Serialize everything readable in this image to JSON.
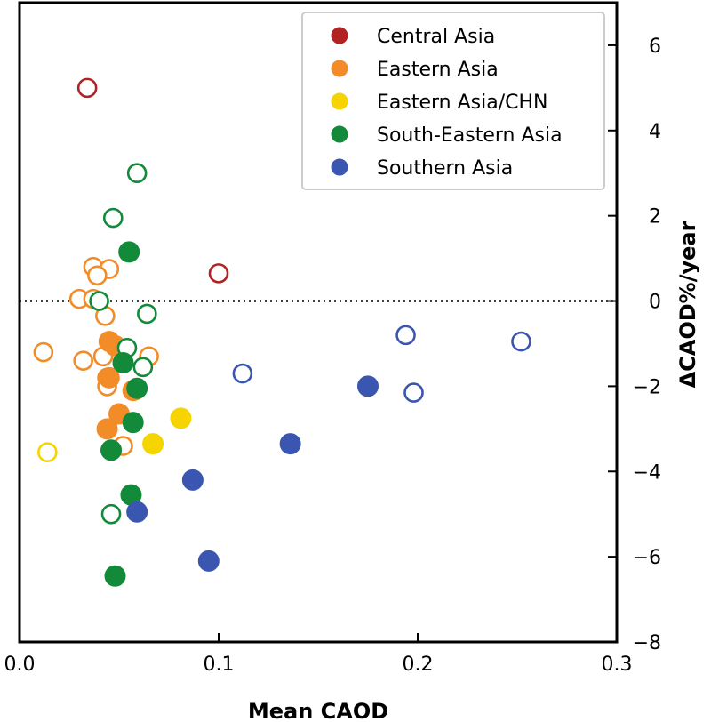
{
  "chart_data": {
    "type": "scatter",
    "xlabel": "Mean CAOD",
    "ylabel": "ΔCAOD%/year",
    "xlim": [
      0.0,
      0.3
    ],
    "ylim": [
      -8,
      7
    ],
    "x_ticks": [
      "0.0",
      "0.1",
      "0.2",
      "0.3"
    ],
    "y_ticks": [
      "6",
      "4",
      "2",
      "0",
      "−2",
      "−4",
      "−6",
      "−8"
    ],
    "y_axis_side": "right",
    "reference_line": {
      "y": 0,
      "style": "dotted"
    },
    "legend_position": "top-right",
    "series": [
      {
        "name": "Central Asia",
        "color": "#b22222",
        "points": [
          {
            "x": 0.034,
            "y": 5.0,
            "filled": false
          },
          {
            "x": 0.1,
            "y": 0.65,
            "filled": false
          }
        ]
      },
      {
        "name": "Eastern Asia",
        "color": "#f28c28",
        "points": [
          {
            "x": 0.037,
            "y": 0.8,
            "filled": false
          },
          {
            "x": 0.045,
            "y": 0.75,
            "filled": false
          },
          {
            "x": 0.039,
            "y": 0.6,
            "filled": false
          },
          {
            "x": 0.03,
            "y": 0.05,
            "filled": false
          },
          {
            "x": 0.037,
            "y": 0.05,
            "filled": false
          },
          {
            "x": 0.043,
            "y": -0.35,
            "filled": false
          },
          {
            "x": 0.012,
            "y": -1.2,
            "filled": false
          },
          {
            "x": 0.032,
            "y": -1.4,
            "filled": false
          },
          {
            "x": 0.042,
            "y": -1.3,
            "filled": false
          },
          {
            "x": 0.065,
            "y": -1.3,
            "filled": false
          },
          {
            "x": 0.044,
            "y": -1.8,
            "filled": false
          },
          {
            "x": 0.044,
            "y": -2.0,
            "filled": false
          },
          {
            "x": 0.058,
            "y": -2.1,
            "filled": false
          },
          {
            "x": 0.052,
            "y": -3.4,
            "filled": false
          },
          {
            "x": 0.045,
            "y": -0.95,
            "filled": true
          },
          {
            "x": 0.048,
            "y": -1.05,
            "filled": true
          },
          {
            "x": 0.045,
            "y": -1.8,
            "filled": true
          },
          {
            "x": 0.057,
            "y": -2.1,
            "filled": true
          },
          {
            "x": 0.05,
            "y": -2.65,
            "filled": true
          },
          {
            "x": 0.044,
            "y": -3.0,
            "filled": true
          }
        ]
      },
      {
        "name": "Eastern Asia/CHN",
        "color": "#f5d400",
        "points": [
          {
            "x": 0.014,
            "y": -3.55,
            "filled": false
          },
          {
            "x": 0.081,
            "y": -2.75,
            "filled": true
          },
          {
            "x": 0.067,
            "y": -3.35,
            "filled": true
          }
        ]
      },
      {
        "name": "South-Eastern Asia",
        "color": "#138a3a",
        "points": [
          {
            "x": 0.059,
            "y": 3.0,
            "filled": false
          },
          {
            "x": 0.047,
            "y": 1.95,
            "filled": false
          },
          {
            "x": 0.04,
            "y": 0.0,
            "filled": false
          },
          {
            "x": 0.064,
            "y": -0.3,
            "filled": false
          },
          {
            "x": 0.054,
            "y": -1.1,
            "filled": false
          },
          {
            "x": 0.062,
            "y": -1.55,
            "filled": false
          },
          {
            "x": 0.046,
            "y": -5.0,
            "filled": false
          },
          {
            "x": 0.055,
            "y": 1.15,
            "filled": true
          },
          {
            "x": 0.052,
            "y": -1.45,
            "filled": true
          },
          {
            "x": 0.059,
            "y": -2.05,
            "filled": true
          },
          {
            "x": 0.057,
            "y": -2.85,
            "filled": true
          },
          {
            "x": 0.046,
            "y": -3.5,
            "filled": true
          },
          {
            "x": 0.056,
            "y": -4.55,
            "filled": true
          },
          {
            "x": 0.048,
            "y": -6.45,
            "filled": true
          }
        ]
      },
      {
        "name": "Southern Asia",
        "color": "#3a56b0",
        "points": [
          {
            "x": 0.112,
            "y": -1.7,
            "filled": false
          },
          {
            "x": 0.194,
            "y": -0.8,
            "filled": false
          },
          {
            "x": 0.198,
            "y": -2.15,
            "filled": false
          },
          {
            "x": 0.252,
            "y": -0.95,
            "filled": false
          },
          {
            "x": 0.059,
            "y": -4.95,
            "filled": true
          },
          {
            "x": 0.087,
            "y": -4.2,
            "filled": true
          },
          {
            "x": 0.095,
            "y": -6.1,
            "filled": true
          },
          {
            "x": 0.136,
            "y": -3.35,
            "filled": true
          },
          {
            "x": 0.175,
            "y": -2.0,
            "filled": true
          }
        ]
      }
    ]
  }
}
